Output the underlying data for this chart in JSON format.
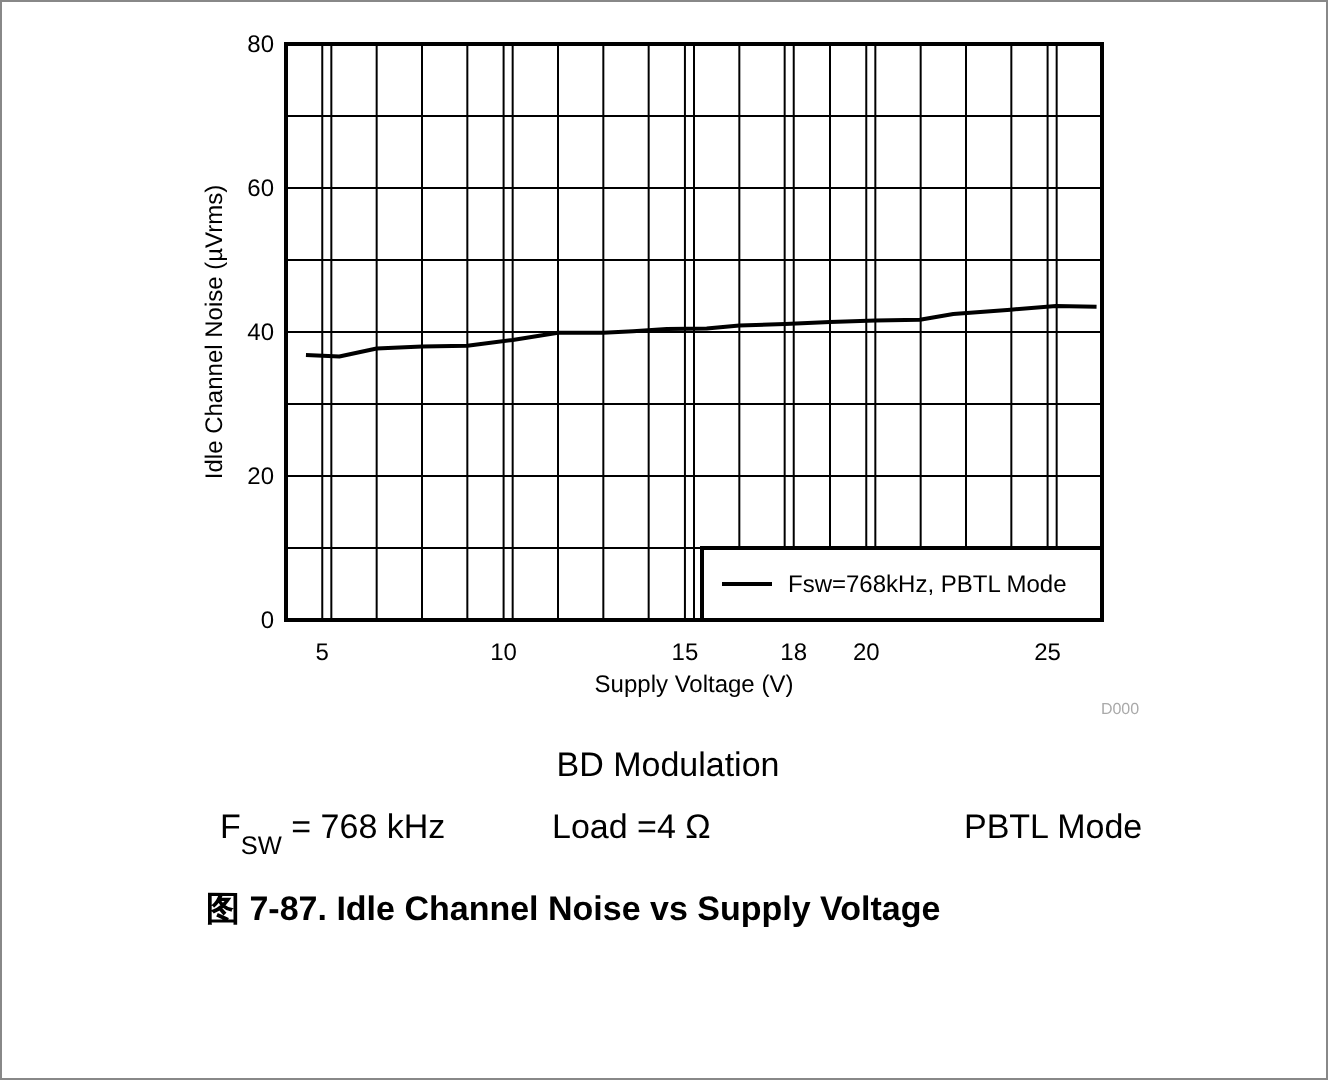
{
  "chart_data": {
    "type": "line",
    "title": "图 7-87. Idle Channel Noise vs Supply Voltage",
    "xlabel": "Supply Voltage (V)",
    "ylabel": "Idle Channel Noise (µVrms)",
    "annotations": [
      "D000",
      "BD Modulation",
      "F$_{SW}$ = 768 kHz",
      "Load =4 Ω",
      "PBTL Mode"
    ],
    "xlim": [
      4,
      26.5
    ],
    "xticks": [
      5,
      10,
      15,
      18,
      20,
      25,
      {
        "value": 5.25,
        "label": null
      },
      {
        "value": 6.5,
        "label": null
      },
      {
        "value": 7.75,
        "label": null
      },
      {
        "value": 9,
        "label": null
      },
      {
        "value": 10.25,
        "label": null
      },
      {
        "value": 11.5,
        "label": null
      },
      {
        "value": 12.75,
        "label": null
      },
      {
        "value": 14,
        "label": null
      },
      {
        "value": 15.25,
        "label": null
      },
      {
        "value": 16.5,
        "label": null
      },
      {
        "value": 17.75,
        "label": null
      },
      {
        "value": 19,
        "label": null
      },
      {
        "value": 20.25,
        "label": null
      },
      {
        "value": 21.5,
        "label": null
      },
      {
        "value": 22.75,
        "label": null
      },
      {
        "value": 24,
        "label": null
      },
      {
        "value": 25.25,
        "label": null
      }
    ],
    "ylim": [
      0,
      80
    ],
    "yticks": [
      0,
      {
        "value": 10,
        "label": null
      },
      20,
      {
        "value": 30,
        "label": null
      },
      40,
      {
        "value": 50,
        "label": null
      },
      60,
      {
        "value": 70,
        "label": null
      },
      80
    ],
    "grid": true,
    "legend": "bottom right",
    "marker": "none",
    "line_style": "solid",
    "x": [
      4.55,
      5.47,
      6.5,
      7.75,
      9.0,
      10.25,
      11.5,
      12.75,
      13.57,
      14.5,
      15.6,
      16.5,
      17.76,
      19.0,
      20.25,
      21.48,
      22.4,
      23.98,
      25.23,
      26.35
    ],
    "series": [
      {
        "name": "Fsw=768kHz, PBTL Mode",
        "color": "#000000",
        "values": [
          36.8,
          36.6,
          37.7,
          38.0,
          38.1,
          38.9,
          39.9,
          39.9,
          40.1,
          40.4,
          40.5,
          40.9,
          41.1,
          41.4,
          41.6,
          41.7,
          42.5,
          43.1,
          43.6,
          43.5
        ]
      }
    ]
  }
}
